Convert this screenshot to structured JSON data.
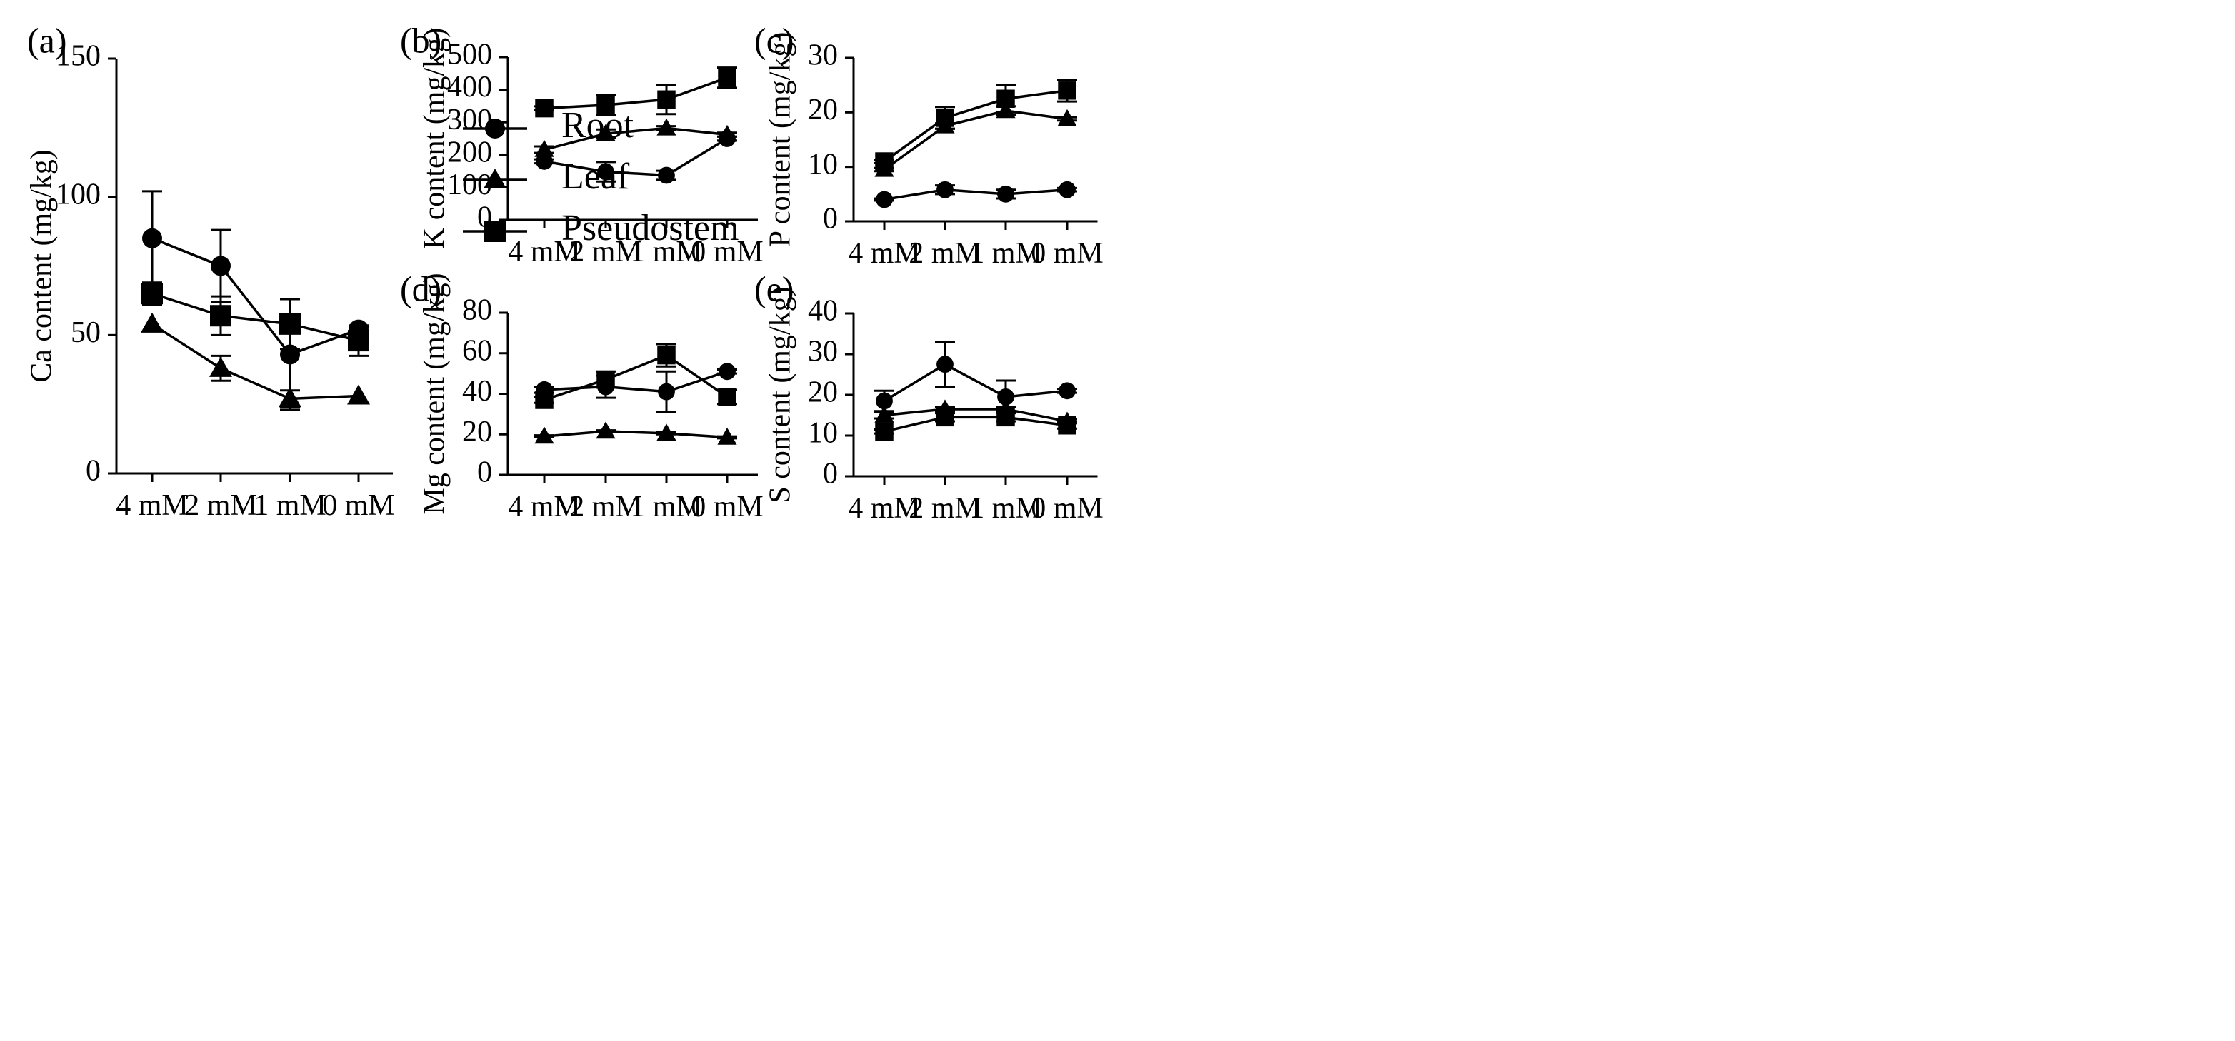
{
  "chart_data": [
    {
      "panel": "(a)",
      "type": "line",
      "categories": [
        "4 mM",
        "2 mM",
        "1 mM",
        "0 mM"
      ],
      "ylabel": "Ca content (mg/kg)",
      "ylim": [
        0,
        150
      ],
      "yticks": [
        0,
        50,
        100,
        150
      ],
      "legend": {
        "placement": "top-right"
      },
      "series": [
        {
          "name": "Root",
          "marker": "circle",
          "values": [
            85,
            75,
            43,
            52
          ],
          "errors": [
            17,
            13,
            20,
            1
          ]
        },
        {
          "name": "Leaf",
          "marker": "triangle",
          "values": [
            54,
            38,
            27,
            28
          ],
          "errors": [
            0,
            4.5,
            3,
            0
          ]
        },
        {
          "name": "Pseudostem",
          "marker": "square",
          "values": [
            65,
            57,
            54,
            48
          ],
          "errors": [
            4,
            7,
            9,
            5.5
          ]
        }
      ]
    },
    {
      "panel": "(b)",
      "type": "line",
      "categories": [
        "4 mM",
        "2 mM",
        "1 mM",
        "0 mM"
      ],
      "ylabel": "K content (mg/kg)",
      "ylim": [
        0,
        500
      ],
      "yticks": [
        0,
        100,
        200,
        300,
        400,
        500
      ],
      "series": [
        {
          "name": "Root",
          "marker": "circle",
          "values": [
            180,
            148,
            137,
            250
          ],
          "errors": [
            6,
            30,
            14,
            6
          ]
        },
        {
          "name": "Leaf",
          "marker": "triangle",
          "values": [
            216,
            265,
            282,
            262
          ],
          "errors": [
            10,
            13,
            6,
            6
          ]
        },
        {
          "name": "Pseudostem",
          "marker": "square",
          "values": [
            343,
            353,
            370,
            437
          ],
          "errors": [
            6,
            30,
            45,
            31
          ]
        }
      ]
    },
    {
      "panel": "(c)",
      "type": "line",
      "categories": [
        "4 mM",
        "2 mM",
        "1 mM",
        "0 mM"
      ],
      "ylabel": "P content (mg/kg)",
      "ylim": [
        0,
        30
      ],
      "yticks": [
        0,
        10,
        20,
        30
      ],
      "series": [
        {
          "name": "Root",
          "marker": "circle",
          "values": [
            4.0,
            5.8,
            5.0,
            5.8
          ],
          "errors": [
            0.2,
            0.8,
            0.8,
            0.3
          ]
        },
        {
          "name": "Leaf",
          "marker": "triangle",
          "values": [
            9.5,
            17.5,
            20.3,
            18.8
          ],
          "errors": [
            0.3,
            0.5,
            0.8,
            0.3
          ]
        },
        {
          "name": "Pseudostem",
          "marker": "square",
          "values": [
            11.0,
            19.0,
            22.5,
            24.0
          ],
          "errors": [
            0.3,
            2.0,
            2.5,
            2.0
          ]
        }
      ]
    },
    {
      "panel": "(d)",
      "type": "line",
      "categories": [
        "4 mM",
        "2 mM",
        "1 mM",
        "0 mM"
      ],
      "ylabel": "Mg content (mg/kg)",
      "ylim": [
        0,
        80
      ],
      "yticks": [
        0,
        20,
        40,
        60,
        80
      ],
      "series": [
        {
          "name": "Root",
          "marker": "circle",
          "values": [
            42,
            43.5,
            41,
            51
          ],
          "errors": [
            1.5,
            5.5,
            10,
            1
          ]
        },
        {
          "name": "Leaf",
          "marker": "triangle",
          "values": [
            19,
            21.5,
            20.5,
            18.5
          ],
          "errors": [
            0.5,
            0.5,
            0.5,
            0.5
          ]
        },
        {
          "name": "Pseudostem",
          "marker": "square",
          "values": [
            37,
            47,
            59,
            38.5
          ],
          "errors": [
            1.5,
            4,
            5.5,
            3.5
          ]
        }
      ]
    },
    {
      "panel": "(e)",
      "type": "line",
      "categories": [
        "4 mM",
        "2 mM",
        "1 mM",
        "0 mM"
      ],
      "ylabel": "S content (mg/kg)",
      "ylim": [
        0,
        40
      ],
      "yticks": [
        0,
        10,
        20,
        30,
        40
      ],
      "series": [
        {
          "name": "Root",
          "marker": "circle",
          "values": [
            18.5,
            27.5,
            19.5,
            21
          ],
          "errors": [
            2.5,
            5.5,
            4,
            0.5
          ]
        },
        {
          "name": "Leaf",
          "marker": "triangle",
          "values": [
            15,
            16.5,
            16.5,
            13.5
          ],
          "errors": [
            0.8,
            0.5,
            0.5,
            0.5
          ]
        },
        {
          "name": "Pseudostem",
          "marker": "square",
          "values": [
            11,
            14.5,
            14.5,
            12.5
          ],
          "errors": [
            0.5,
            1,
            1,
            0.8
          ]
        }
      ]
    }
  ]
}
